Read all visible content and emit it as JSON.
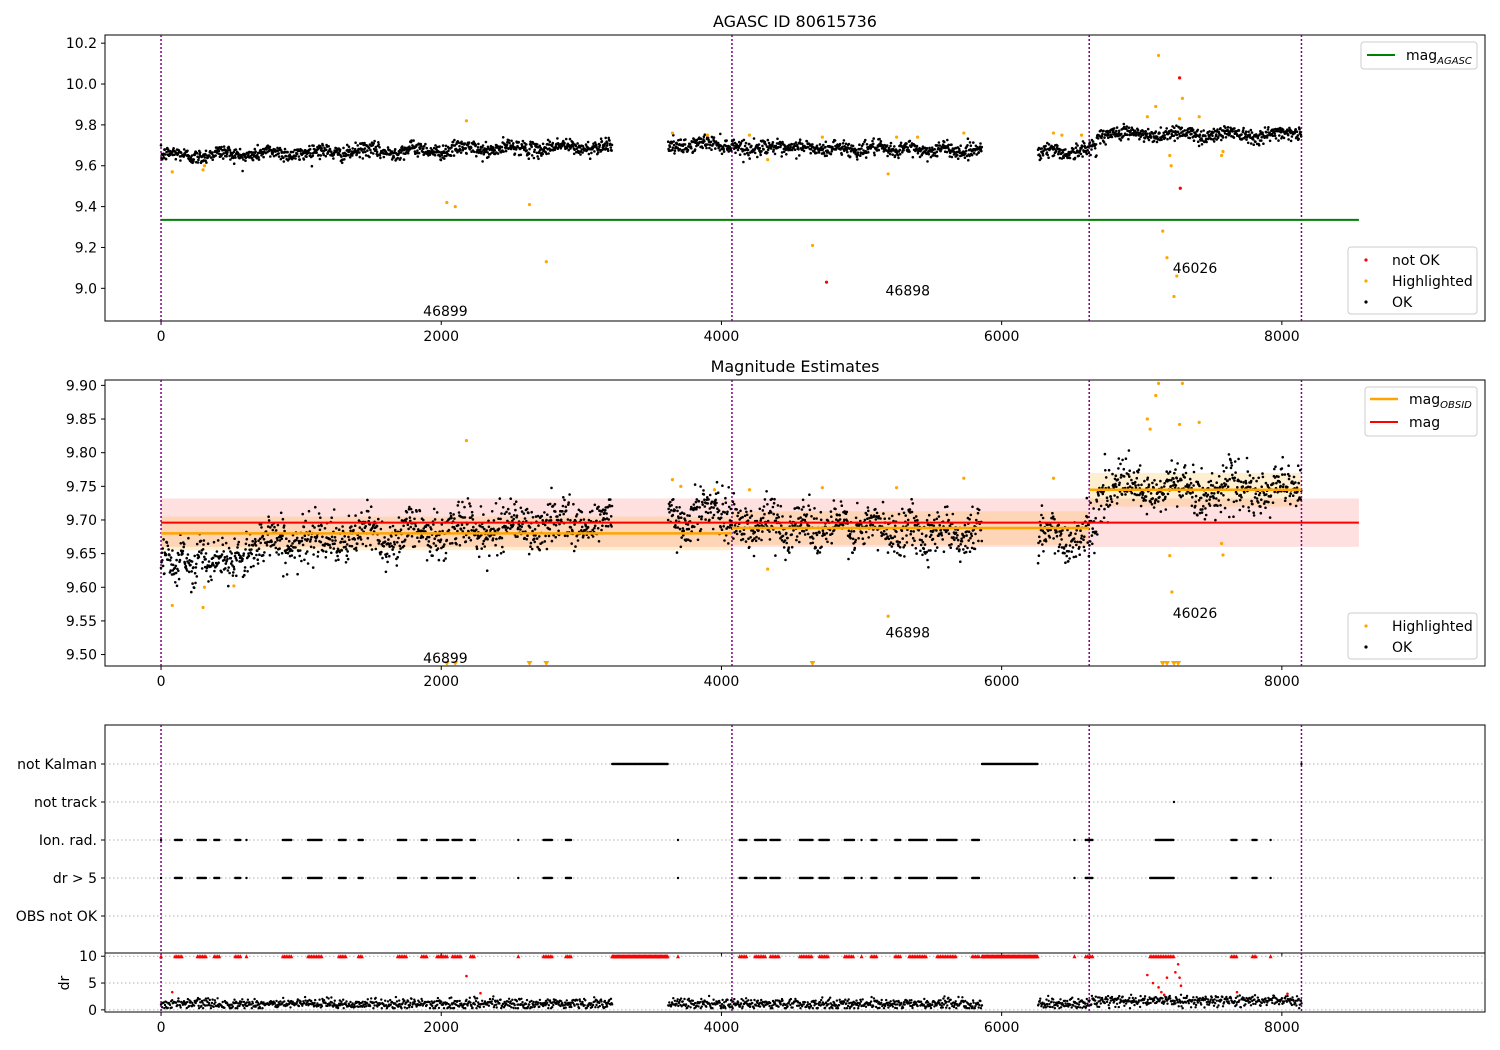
{
  "chart_data": [
    {
      "type": "scatter",
      "title": "AGASC ID 80615736",
      "xlim": [
        -400,
        9450
      ],
      "ylim": [
        8.84,
        10.24
      ],
      "xticks": [
        0,
        2000,
        4000,
        6000,
        8000
      ],
      "yticks": [
        9.0,
        9.2,
        9.4,
        9.6,
        9.8,
        10.0,
        10.2
      ],
      "ytick_labels": [
        "9.0",
        "9.2",
        "9.4",
        "9.6",
        "9.8",
        "10.0",
        "10.2"
      ],
      "obsid_boundaries": [
        0,
        4075,
        6625,
        8140
      ],
      "obsid_labels": [
        {
          "text": "46899",
          "x": 2030,
          "y": 8.89
        },
        {
          "text": "46898",
          "x": 5330,
          "y": 8.99
        },
        {
          "text": "46026",
          "x": 7380,
          "y": 9.1
        }
      ],
      "agasc_mag": {
        "value": 9.335,
        "x_range": [
          0,
          8550
        ]
      },
      "series": [
        {
          "name": "not OK",
          "color": "#ff0000",
          "points": [
            [
              4750,
              9.03
            ],
            [
              7270,
              10.03
            ],
            [
              7275,
              9.49
            ]
          ]
        },
        {
          "name": "Highlighted",
          "color": "#ffa500",
          "points": [
            [
              80,
              9.57
            ],
            [
              300,
              9.58
            ],
            [
              310,
              9.6
            ],
            [
              2040,
              9.42
            ],
            [
              2100,
              9.4
            ],
            [
              2180,
              9.82
            ],
            [
              2630,
              9.41
            ],
            [
              2750,
              9.13
            ],
            [
              3650,
              9.76
            ],
            [
              3900,
              9.75
            ],
            [
              4200,
              9.75
            ],
            [
              4330,
              9.63
            ],
            [
              4650,
              9.21
            ],
            [
              4720,
              9.74
            ],
            [
              5190,
              9.56
            ],
            [
              5250,
              9.74
            ],
            [
              5400,
              9.74
            ],
            [
              5730,
              9.76
            ],
            [
              6370,
              9.76
            ],
            [
              6430,
              9.75
            ],
            [
              6570,
              9.75
            ],
            [
              7040,
              9.84
            ],
            [
              7100,
              9.89
            ],
            [
              7120,
              10.14
            ],
            [
              7150,
              9.28
            ],
            [
              7180,
              9.15
            ],
            [
              7200,
              9.65
            ],
            [
              7210,
              9.6
            ],
            [
              7230,
              8.96
            ],
            [
              7250,
              9.06
            ],
            [
              7270,
              9.83
            ],
            [
              7290,
              9.93
            ],
            [
              7410,
              9.84
            ],
            [
              7570,
              9.65
            ],
            [
              7580,
              9.67
            ]
          ]
        },
        {
          "name": "OK",
          "color": "#000000",
          "segments": [
            [
              0,
              3220
            ],
            [
              3620,
              5860
            ],
            [
              6260,
              8140
            ]
          ]
        }
      ],
      "legend_top": [
        "mag$_{AGASC}$"
      ],
      "legend_bottom": [
        "not OK",
        "Highlighted",
        "OK"
      ]
    },
    {
      "type": "scatter",
      "title": "Magnitude Estimates",
      "xlim": [
        -400,
        9450
      ],
      "ylim": [
        9.483,
        9.908
      ],
      "xticks": [
        0,
        2000,
        4000,
        6000,
        8000
      ],
      "yticks": [
        9.5,
        9.55,
        9.6,
        9.65,
        9.7,
        9.75,
        9.8,
        9.85,
        9.9
      ],
      "ytick_labels": [
        "9.50",
        "9.55",
        "9.60",
        "9.65",
        "9.70",
        "9.75",
        "9.80",
        "9.85",
        "9.90"
      ],
      "obsid_boundaries": [
        0,
        4075,
        6625,
        8140
      ],
      "obsid_labels": [
        {
          "text": "46899",
          "x": 2030,
          "y": 9.495
        },
        {
          "text": "46898",
          "x": 5330,
          "y": 9.533
        },
        {
          "text": "46026",
          "x": 7380,
          "y": 9.562
        }
      ],
      "mag": {
        "value": 9.696,
        "band": [
          9.66,
          9.732
        ],
        "x_range": [
          0,
          8550
        ]
      },
      "mag_obsid": [
        {
          "x_range": [
            0,
            4075
          ],
          "value": 9.68,
          "band": [
            9.655,
            9.705
          ]
        },
        {
          "x_range": [
            4075,
            6625
          ],
          "value": 9.688,
          "band": [
            9.663,
            9.713
          ]
        },
        {
          "x_range": [
            6625,
            8140
          ],
          "value": 9.745,
          "band": [
            9.72,
            9.77
          ]
        }
      ],
      "series": [
        {
          "name": "Highlighted",
          "color": "#ffa500",
          "points": [
            [
              80,
              9.573
            ],
            [
              300,
              9.57
            ],
            [
              310,
              9.6
            ],
            [
              520,
              9.602
            ],
            [
              2180,
              9.818
            ],
            [
              3650,
              9.76
            ],
            [
              3710,
              9.75
            ],
            [
              3950,
              9.745
            ],
            [
              4200,
              9.745
            ],
            [
              4330,
              9.627
            ],
            [
              4720,
              9.748
            ],
            [
              5190,
              9.557
            ],
            [
              5250,
              9.748
            ],
            [
              5730,
              9.762
            ],
            [
              6370,
              9.762
            ],
            [
              7040,
              9.85
            ],
            [
              7060,
              9.835
            ],
            [
              7100,
              9.885
            ],
            [
              7120,
              9.903
            ],
            [
              7200,
              9.647
            ],
            [
              7215,
              9.593
            ],
            [
              7270,
              9.842
            ],
            [
              7290,
              9.903
            ],
            [
              7410,
              9.845
            ],
            [
              7570,
              9.665
            ],
            [
              7580,
              9.648
            ]
          ]
        },
        {
          "name": "Highlighted (off scale)",
          "color": "#ffa500",
          "points": [
            [
              2040,
              9.486
            ],
            [
              2100,
              9.486
            ],
            [
              2630,
              9.486
            ],
            [
              2750,
              9.486
            ],
            [
              4650,
              9.486
            ],
            [
              7150,
              9.486
            ],
            [
              7180,
              9.486
            ],
            [
              7230,
              9.486
            ],
            [
              7260,
              9.486
            ]
          ]
        },
        {
          "name": "OK",
          "color": "#000000",
          "segments": [
            [
              0,
              3220
            ],
            [
              3620,
              5860
            ],
            [
              6260,
              8140
            ]
          ]
        }
      ],
      "legend_top": [
        "mag$_{OBSID}$",
        "mag"
      ],
      "legend_bottom": [
        "Highlighted",
        "OK"
      ]
    },
    {
      "type": "scatter",
      "title": "",
      "xlim": [
        -400,
        9450
      ],
      "xticks": [
        0,
        2000,
        4000,
        6000,
        8000
      ],
      "obsid_boundaries": [
        0,
        4075,
        6625,
        8140
      ],
      "flag_rows": [
        "not Kalman",
        "not track",
        "Ion. rad.",
        "dr > 5",
        "OBS not OK"
      ],
      "flags": {
        "not Kalman": {
          "ranges": [
            [
              3220,
              3620
            ],
            [
              5860,
              6260
            ]
          ],
          "points": [
            8140
          ]
        },
        "not track": {
          "ranges": [],
          "points": [
            7230
          ]
        },
        "Ion. rad.": {
          "ranges": [
            [
              100,
              150
            ],
            [
              260,
              320
            ],
            [
              380,
              420
            ],
            [
              530,
              570
            ],
            [
              870,
              930
            ],
            [
              1050,
              1150
            ],
            [
              1270,
              1320
            ],
            [
              1410,
              1440
            ],
            [
              1690,
              1750
            ],
            [
              1860,
              1900
            ],
            [
              1970,
              2050
            ],
            [
              2080,
              2150
            ],
            [
              2210,
              2240
            ],
            [
              2730,
              2790
            ],
            [
              2890,
              2930
            ],
            [
              4130,
              4180
            ],
            [
              4240,
              4320
            ],
            [
              4350,
              4420
            ],
            [
              4560,
              4650
            ],
            [
              4700,
              4770
            ],
            [
              4880,
              4950
            ],
            [
              5070,
              5110
            ],
            [
              5240,
              5280
            ],
            [
              5340,
              5470
            ],
            [
              5540,
              5680
            ],
            [
              5790,
              5840
            ],
            [
              6600,
              6650
            ],
            [
              7100,
              7230
            ],
            [
              7640,
              7680
            ],
            [
              7790,
              7820
            ]
          ],
          "points": [
            0,
            610,
            2550,
            3690,
            5000,
            6520,
            7920
          ]
        },
        "dr > 5": {
          "ranges": [
            [
              100,
              150
            ],
            [
              260,
              320
            ],
            [
              380,
              420
            ],
            [
              530,
              570
            ],
            [
              870,
              930
            ],
            [
              1050,
              1150
            ],
            [
              1270,
              1320
            ],
            [
              1410,
              1440
            ],
            [
              1690,
              1750
            ],
            [
              1860,
              1900
            ],
            [
              1970,
              2050
            ],
            [
              2080,
              2150
            ],
            [
              2210,
              2240
            ],
            [
              2730,
              2790
            ],
            [
              2890,
              2930
            ],
            [
              4130,
              4180
            ],
            [
              4240,
              4320
            ],
            [
              4350,
              4420
            ],
            [
              4560,
              4650
            ],
            [
              4700,
              4770
            ],
            [
              4880,
              4950
            ],
            [
              5070,
              5110
            ],
            [
              5240,
              5280
            ],
            [
              5340,
              5470
            ],
            [
              5540,
              5680
            ],
            [
              5790,
              5840
            ],
            [
              6600,
              6650
            ],
            [
              7060,
              7230
            ],
            [
              7640,
              7680
            ],
            [
              7790,
              7820
            ]
          ],
          "points": [
            0,
            610,
            2550,
            3690,
            5000,
            6520,
            7920
          ]
        },
        "OBS not OK": {
          "ranges": [],
          "points": []
        }
      }
    },
    {
      "type": "scatter",
      "title": "",
      "ylabel": "dr",
      "xlim": [
        -400,
        9450
      ],
      "ylim": [
        -0.4,
        10.6
      ],
      "xticks": [
        0,
        2000,
        4000,
        6000,
        8000
      ],
      "xtick_labels": [
        "0",
        "2000",
        "4000",
        "6000",
        "8000"
      ],
      "yticks": [
        0,
        5,
        10
      ],
      "ytick_labels": [
        "0",
        "5",
        "10"
      ],
      "obsid_boundaries": [
        0,
        4075,
        6625,
        8140
      ],
      "segments_ok": [
        [
          0,
          3220
        ],
        [
          3620,
          5860
        ],
        [
          6260,
          8140
        ]
      ],
      "dr_typical": [
        0.3,
        2.5
      ],
      "dr_clip": 10,
      "dr_high_ranges": [
        [
          3220,
          3620
        ],
        [
          5860,
          6260
        ]
      ],
      "red_points": [
        [
          80,
          3.3
        ],
        [
          2180,
          6.3
        ],
        [
          2280,
          3.1
        ],
        [
          7040,
          6.5
        ],
        [
          7080,
          5.0
        ],
        [
          7120,
          4.2
        ],
        [
          7140,
          3.3
        ],
        [
          7160,
          2.8
        ],
        [
          7180,
          6.0
        ],
        [
          7240,
          7.0
        ],
        [
          7260,
          8.5
        ],
        [
          7270,
          6.0
        ],
        [
          7280,
          4.5
        ],
        [
          7680,
          3.3
        ],
        [
          8040,
          3.0
        ]
      ]
    }
  ]
}
